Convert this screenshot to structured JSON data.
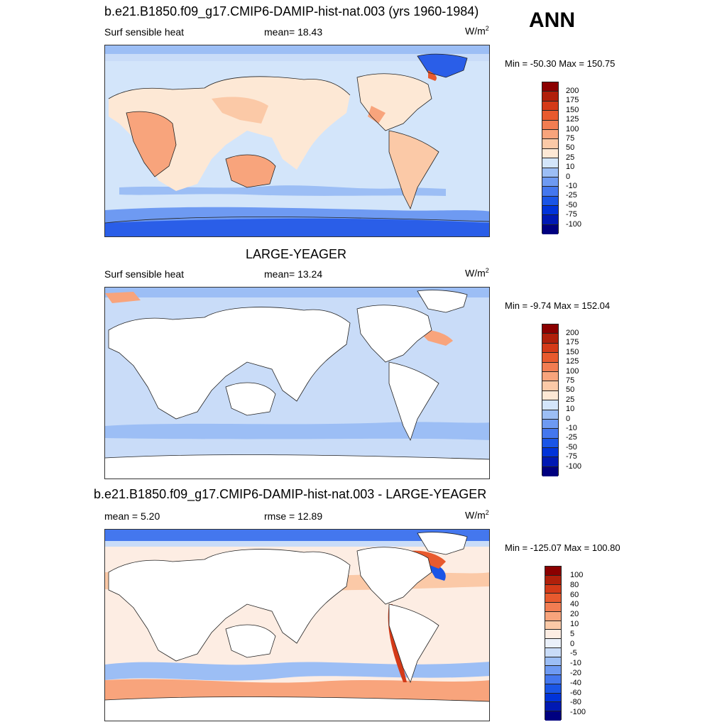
{
  "season": "ANN",
  "colors": {
    "abs_scale": [
      "#000080",
      "#0019B3",
      "#0033D9",
      "#1A55E6",
      "#4477EE",
      "#6E9AF2",
      "#9CBEF5",
      "#C9DCF8",
      "#FDE8D5",
      "#FBC9A7",
      "#F8A47C",
      "#F27D52",
      "#E85A2E",
      "#D43A18",
      "#B0200B",
      "#8B0000"
    ],
    "diff_scale": [
      "#000080",
      "#0019B3",
      "#0033D9",
      "#1A55E6",
      "#4477EE",
      "#6E9AF2",
      "#9CBEF5",
      "#C9DCF8",
      "#EAF0FA",
      "#FDEDE3",
      "#FBC9A7",
      "#F8A47C",
      "#F27D52",
      "#E85A2E",
      "#D43A18",
      "#B0200B",
      "#8B0000"
    ]
  },
  "panel1": {
    "title": "b.e21.B1850.f09_g17.CMIP6-DAMIP-hist-nat.003 (yrs 1960-1984)",
    "variable": "Surf sensible heat",
    "mean_label": "mean=  18.43",
    "units": "W/m",
    "units_sup": "2",
    "minmax": "Min = -50.30 Max = 150.75",
    "levels": [
      "200",
      "175",
      "150",
      "125",
      "100",
      "75",
      "50",
      "25",
      "10",
      "0",
      "-10",
      "-25",
      "-50",
      "-75",
      "-100"
    ]
  },
  "panel2": {
    "title": "LARGE-YEAGER",
    "variable": "Surf sensible heat",
    "mean_label": "mean=  13.24",
    "units": "W/m",
    "units_sup": "2",
    "minmax": "Min =  -9.74 Max = 152.04",
    "levels": [
      "200",
      "175",
      "150",
      "125",
      "100",
      "75",
      "50",
      "25",
      "10",
      "0",
      "-10",
      "-25",
      "-50",
      "-75",
      "-100"
    ]
  },
  "panel3": {
    "title": "b.e21.B1850.f09_g17.CMIP6-DAMIP-hist-nat.003 - LARGE-YEAGER",
    "mean_label": "mean =   5.20",
    "rmse_label": "rmse =  12.89",
    "units": "W/m",
    "units_sup": "2",
    "minmax": "Min = -125.07 Max = 100.80",
    "levels": [
      "100",
      "80",
      "60",
      "40",
      "20",
      "10",
      "5",
      "0",
      "-5",
      "-10",
      "-20",
      "-40",
      "-60",
      "-80",
      "-100"
    ]
  }
}
